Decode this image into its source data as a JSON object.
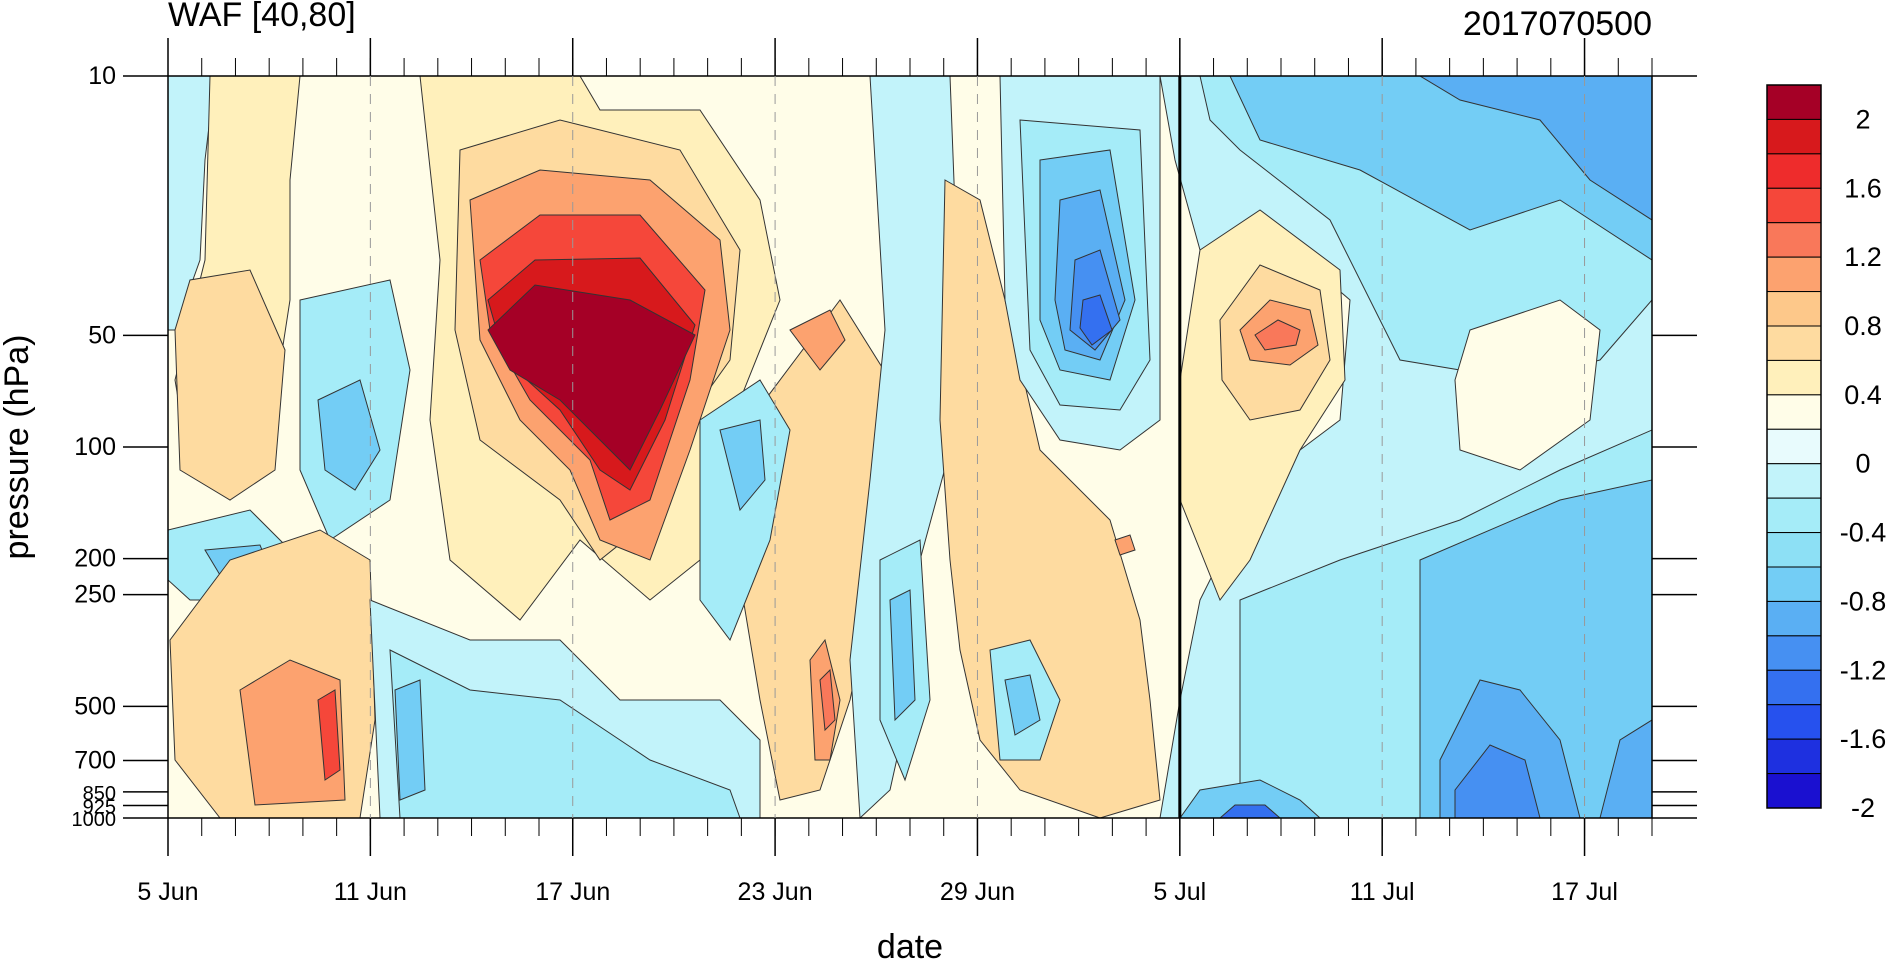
{
  "chart_data": {
    "type": "heatmap",
    "title": "WAF [40,80]",
    "subtitle": "2017070500",
    "xlabel": "date",
    "ylabel": "pressure (hPa)",
    "x_ticks": [
      "5 Jun",
      "11 Jun",
      "17 Jun",
      "23 Jun",
      "29 Jun",
      "5 Jul",
      "11 Jul",
      "17 Jul"
    ],
    "x_range": [
      "5 Jun",
      "19 Jul"
    ],
    "y_ticks": [
      10,
      50,
      100,
      200,
      250,
      500,
      700,
      850,
      925,
      1000
    ],
    "y_tick_labels": [
      "10",
      "50",
      "100",
      "200",
      "250",
      "500",
      "700",
      "850",
      "925",
      "1000"
    ],
    "y_range": [
      1000,
      10
    ],
    "y_scale": "log (pressure, inverted)",
    "vertical_marker": "5 Jul",
    "grid": "dashed vertical lines at labeled dates",
    "colorbar": {
      "labels": [
        "2",
        "1.6",
        "1.2",
        "0.8",
        "0.4",
        "0",
        "-0.4",
        "-0.8",
        "-1.2",
        "-1.6",
        "-2"
      ],
      "colors": [
        "#a50026",
        "#d7191c",
        "#ee2c2c",
        "#f5473a",
        "#f9785a",
        "#fca26f",
        "#fdc88a",
        "#fedba0",
        "#fff0bb",
        "#fffde8",
        "#e8fbfd",
        "#c2f3fa",
        "#a5ecf8",
        "#8de0f5",
        "#73cdf5",
        "#5aaff3",
        "#4690f2",
        "#3470f0",
        "#2651ee",
        "#1e30e0",
        "#1a10d0"
      ]
    },
    "features": [
      {
        "label": "strong positive maximum",
        "date_range": [
          "14 Jun",
          "21 Jun"
        ],
        "pressure_range": [
          30,
          180
        ],
        "value": "above 2"
      },
      {
        "label": "positive center",
        "date_range": [
          "6 Jul",
          "10 Jul"
        ],
        "pressure_range": [
          40,
          90
        ],
        "value": 1.0
      },
      {
        "label": "negative center",
        "date_range": [
          "2 Jul",
          "4 Jul"
        ],
        "pressure_range": [
          30,
          80
        ],
        "value": -1.6
      },
      {
        "label": "negative region",
        "date_range": [
          "10 Jul",
          "19 Jul"
        ],
        "pressure_range": [
          10,
          1000
        ],
        "value": -1.0
      }
    ]
  }
}
